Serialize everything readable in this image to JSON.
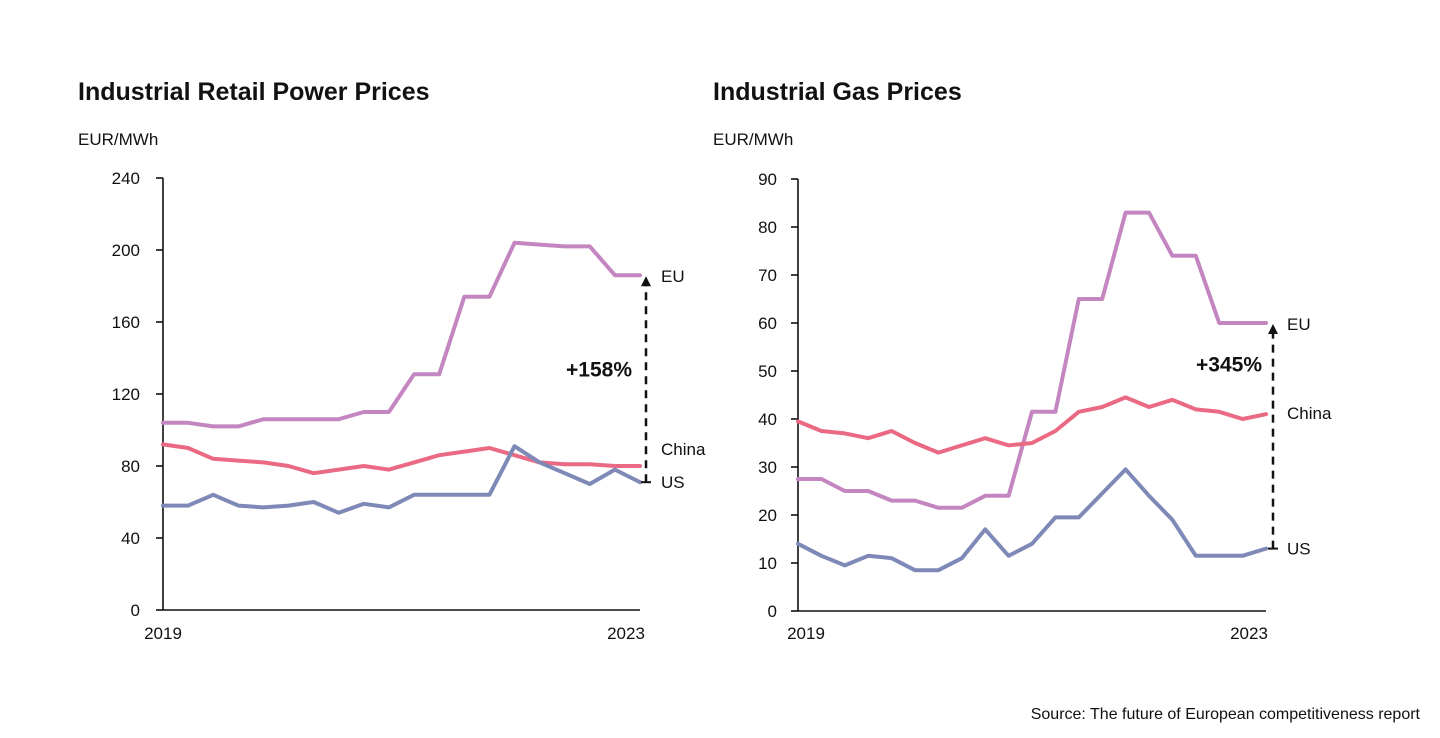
{
  "colors": {
    "eu": "#c486c0",
    "china": "#ea6a84",
    "us": "#7f89b7",
    "axis": "#111111"
  },
  "source": "Source: The future of European competitiveness report",
  "chart_data": [
    {
      "type": "line",
      "title": "Industrial Retail Power Prices",
      "ylabel": "EUR/MWh",
      "ylim": [
        0,
        240
      ],
      "yticks": [
        0,
        40,
        80,
        120,
        160,
        200,
        240
      ],
      "x_start_label": "2019",
      "x_end_label": "2023",
      "x": [
        0,
        1,
        2,
        3,
        4,
        5,
        6,
        7,
        8,
        9,
        10,
        11,
        12,
        13,
        14,
        15,
        16,
        17,
        18,
        19
      ],
      "series": [
        {
          "name": "EU",
          "key": "eu",
          "values": [
            104,
            104,
            102,
            102,
            106,
            106,
            106,
            106,
            110,
            110,
            131,
            131,
            174,
            174,
            204,
            203,
            202,
            202,
            186,
            186
          ]
        },
        {
          "name": "China",
          "key": "china",
          "values": [
            92,
            90,
            84,
            83,
            82,
            80,
            76,
            78,
            80,
            78,
            82,
            86,
            88,
            90,
            86,
            82,
            81,
            81,
            80,
            80
          ]
        },
        {
          "name": "US",
          "key": "us",
          "values": [
            58,
            58,
            64,
            58,
            57,
            58,
            60,
            54,
            59,
            57,
            64,
            64,
            64,
            64,
            91,
            82,
            76,
            70,
            78,
            71
          ]
        }
      ],
      "annotation": {
        "text": "+158%",
        "from": "us",
        "to": "eu"
      }
    },
    {
      "type": "line",
      "title": "Industrial Gas Prices",
      "ylabel": "EUR/MWh",
      "ylim": [
        0,
        90
      ],
      "yticks": [
        0,
        10,
        20,
        30,
        40,
        50,
        60,
        70,
        80,
        90
      ],
      "x_start_label": "2019",
      "x_end_label": "2023",
      "x": [
        0,
        1,
        2,
        3,
        4,
        5,
        6,
        7,
        8,
        9,
        10,
        11,
        12,
        13,
        14,
        15,
        16,
        17,
        18,
        19,
        20
      ],
      "series": [
        {
          "name": "EU",
          "key": "eu",
          "values": [
            27.5,
            27.5,
            25,
            25,
            23,
            23,
            21.5,
            21.5,
            24,
            24,
            41.5,
            41.5,
            65,
            65,
            83,
            83,
            74,
            74,
            60,
            60,
            60
          ]
        },
        {
          "name": "China",
          "key": "china",
          "values": [
            39.5,
            37.5,
            37,
            36,
            37.5,
            35,
            33,
            34.5,
            36,
            34.5,
            35,
            37.5,
            41.5,
            42.5,
            44.5,
            42.5,
            44,
            42,
            41.5,
            40,
            41
          ]
        },
        {
          "name": "US",
          "key": "us",
          "values": [
            14,
            11.5,
            9.5,
            11.5,
            11,
            8.5,
            8.5,
            11,
            17,
            11.5,
            14,
            19.5,
            19.5,
            24.5,
            29.5,
            24,
            19,
            11.5,
            11.5,
            11.5,
            13
          ]
        }
      ],
      "annotation": {
        "text": "+345%",
        "from": "us",
        "to": "eu"
      }
    }
  ]
}
